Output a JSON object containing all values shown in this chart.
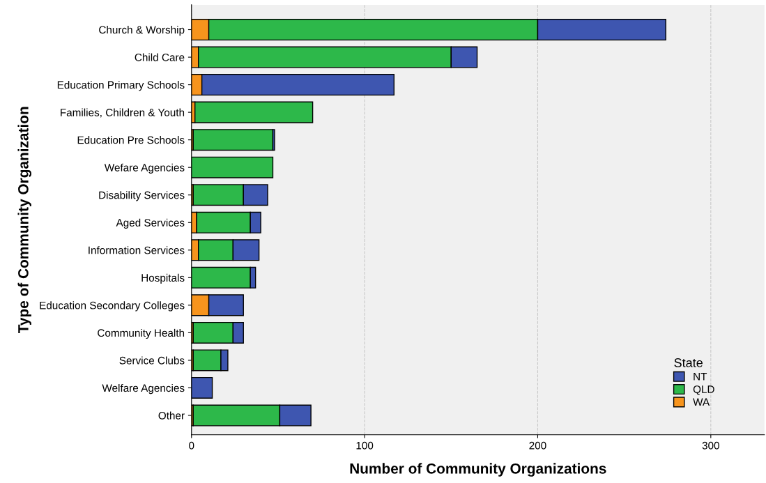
{
  "chart_data": {
    "type": "bar",
    "orientation": "horizontal",
    "stacked": true,
    "xlabel": "Number of Community Organizations",
    "ylabel": "Type of Community Organization",
    "categories": [
      "Church & Worship",
      "Child Care",
      "Education Primary Schools",
      "Families, Children & Youth",
      "Education Pre Schools",
      "Wefare Agencies",
      "Disability Services",
      "Aged Services",
      "Information Services",
      "Hospitals",
      "Education Secondary Colleges",
      "Community Health",
      "Service Clubs",
      "Welfare Agencies",
      "Other"
    ],
    "series": [
      {
        "name": "WA",
        "color": "#f7941d",
        "values": [
          10,
          4,
          6,
          2,
          1,
          0,
          1,
          3,
          4,
          0,
          10,
          1,
          1,
          0,
          1
        ]
      },
      {
        "name": "QLD",
        "color": "#2db84a",
        "values": [
          190,
          146,
          0,
          68,
          46,
          47,
          29,
          31,
          20,
          34,
          0,
          23,
          16,
          0,
          50
        ]
      },
      {
        "name": "NT",
        "color": "#3e56b0",
        "values": [
          74,
          15,
          111,
          0,
          1,
          0,
          14,
          6,
          15,
          3,
          20,
          6,
          4,
          12,
          18
        ]
      }
    ],
    "xlim": [
      0,
      331
    ],
    "xticks": [
      0,
      100,
      200,
      300
    ],
    "grid": "x",
    "legend": "bottom right",
    "legend_title": "State"
  }
}
